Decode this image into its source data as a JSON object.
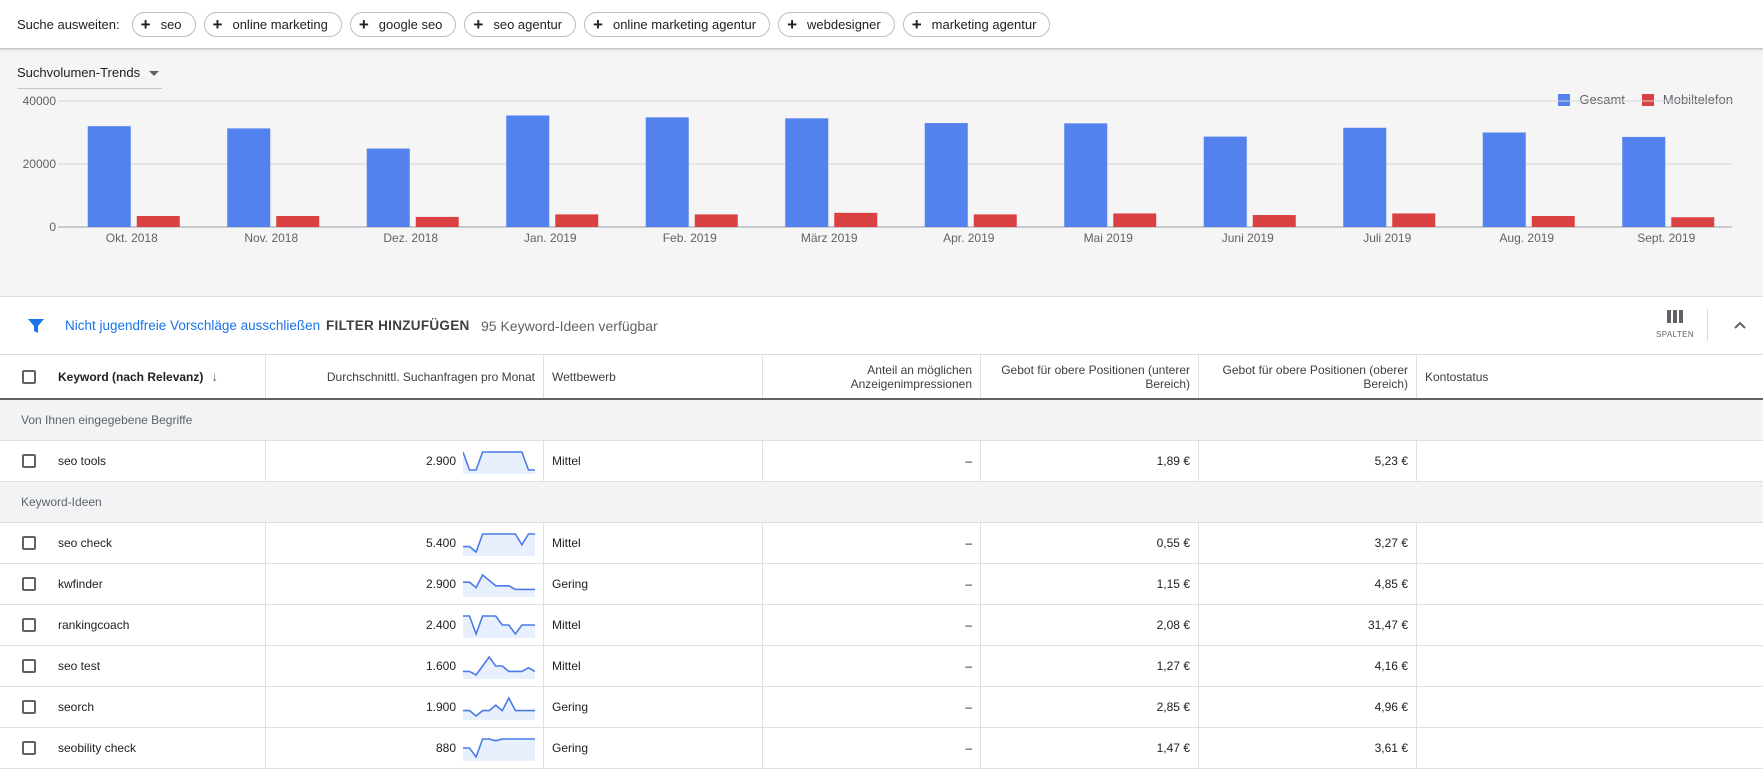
{
  "expand": {
    "label": "Suche ausweiten:",
    "chips": [
      {
        "label": "seo"
      },
      {
        "label": "online marketing"
      },
      {
        "label": "google seo"
      },
      {
        "label": "seo agentur"
      },
      {
        "label": "online marketing agentur"
      },
      {
        "label": "webdesigner"
      },
      {
        "label": "marketing agentur"
      }
    ]
  },
  "trend_select": {
    "label": "Suchvolumen-Trends"
  },
  "colors": {
    "total": "#5381ee",
    "mobile": "#db4143",
    "link": "#1a73e8"
  },
  "chart_data": {
    "type": "bar",
    "categories": [
      "Okt. 2018",
      "Nov. 2018",
      "Dez. 2018",
      "Jan. 2019",
      "Feb. 2019",
      "März 2019",
      "Apr. 2019",
      "Mai 2019",
      "Juni 2019",
      "Juli 2019",
      "Aug. 2019",
      "Sept. 2019"
    ],
    "series": [
      {
        "name": "Gesamt",
        "values": [
          32000,
          31300,
          24900,
          35400,
          34800,
          34500,
          33000,
          32900,
          28700,
          31500,
          30000,
          28600
        ]
      },
      {
        "name": "Mobiltelefon",
        "values": [
          3500,
          3500,
          3200,
          4000,
          4000,
          4500,
          4000,
          4300,
          3800,
          4300,
          3500,
          3100
        ]
      }
    ],
    "y_ticks": [
      "0",
      "20000",
      "40000"
    ],
    "ylim": [
      0,
      40000
    ],
    "grid": true,
    "legend": "top-right"
  },
  "filter": {
    "exclude_link": "Nicht jugendfreie Vorschläge ausschließen",
    "add_filter": "FILTER HINZUFÜGEN",
    "count": "95 Keyword-Ideen verfügbar",
    "columns_label": "SPALTEN"
  },
  "table": {
    "headers": {
      "keyword": "Keyword (nach Relevanz)",
      "avg": "Durchschnittl. Suchanfragen pro Monat",
      "competition": "Wettbewerb",
      "share": "Anteil an möglichen Anzeigenimpressionen",
      "bid_low": "Gebot für obere Positionen (unterer Bereich)",
      "bid_high": "Gebot für obere Positionen (oberer Bereich)",
      "status": "Kontostatus"
    },
    "group_entered": "Von Ihnen eingegebene Begriffe",
    "group_ideas": "Keyword-Ideen",
    "entered_rows": [
      {
        "keyword": "seo tools",
        "avg": "2.900",
        "competition": "Mittel",
        "share": "–",
        "bid_low": "1,89 €",
        "bid_high": "5,23 €",
        "trend": [
          10,
          0,
          0,
          10,
          10,
          10,
          10,
          10,
          10,
          10,
          0,
          0
        ]
      }
    ],
    "idea_rows": [
      {
        "keyword": "seo check",
        "avg": "5.400",
        "competition": "Mittel",
        "share": "–",
        "bid_low": "0,55 €",
        "bid_high": "3,27 €",
        "trend": [
          3,
          3,
          0,
          10,
          10,
          10,
          10,
          10,
          10,
          4,
          10,
          10
        ]
      },
      {
        "keyword": "kwfinder",
        "avg": "2.900",
        "competition": "Gering",
        "share": "–",
        "bid_low": "1,15 €",
        "bid_high": "4,85 €",
        "trend": [
          6,
          6,
          3,
          10,
          7,
          4,
          4,
          4,
          2,
          2,
          2,
          2
        ]
      },
      {
        "keyword": "rankingcoach",
        "avg": "2.400",
        "competition": "Mittel",
        "share": "–",
        "bid_low": "2,08 €",
        "bid_high": "31,47 €",
        "trend": [
          10,
          10,
          0,
          10,
          10,
          10,
          5,
          5,
          0,
          5,
          5,
          5
        ]
      },
      {
        "keyword": "seo test",
        "avg": "1.600",
        "competition": "Mittel",
        "share": "–",
        "bid_low": "1,27 €",
        "bid_high": "4,16 €",
        "trend": [
          2,
          2,
          0,
          5,
          10,
          5,
          5,
          2,
          2,
          2,
          4,
          2
        ]
      },
      {
        "keyword": "seorch",
        "avg": "1.900",
        "competition": "Gering",
        "share": "–",
        "bid_low": "2,85 €",
        "bid_high": "4,96 €",
        "trend": [
          3,
          3,
          0,
          3,
          3,
          6,
          3,
          10,
          3,
          3,
          3,
          3
        ]
      },
      {
        "keyword": "seobility check",
        "avg": "880",
        "competition": "Gering",
        "share": "–",
        "bid_low": "1,47 €",
        "bid_high": "3,61 €",
        "trend": [
          5,
          5,
          0,
          10,
          10,
          9,
          10,
          10,
          10,
          10,
          10,
          10
        ]
      }
    ]
  }
}
